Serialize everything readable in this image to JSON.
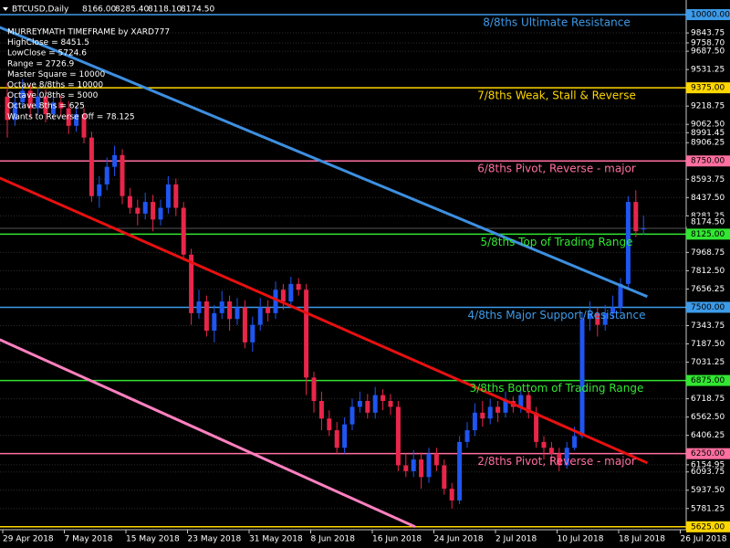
{
  "chart_data": {
    "type": "candlestick",
    "header": {
      "symbol": "BTCUSD,Daily",
      "ohlc_labels": [
        "8166.00",
        "8285.40",
        "8118.10",
        "8174.50"
      ]
    },
    "info_lines": [
      "MURREYMATH TIMEFRAME by XARD777",
      "HighClose = 8451.5",
      "LowClose = 5724.6",
      "Range = 2726.9",
      "Master Square = 10000",
      "Octave 8/8ths = 10000",
      "Octave 0/8ths = 5000",
      "Octave 8ths = 625",
      "Wants to Reverse Off = 78.125"
    ],
    "x_labels": [
      "29 Apr 2018",
      "7 May 2018",
      "15 May 2018",
      "23 May 2018",
      "31 May 2018",
      "8 Jun 2018",
      "16 Jun 2018",
      "24 Jun 2018",
      "2 Jul 2018",
      "10 Jul 2018",
      "18 Jul 2018",
      "26 Jul 2018"
    ],
    "ylim": [
      5600,
      10125
    ],
    "yticks": [
      9843.75,
      {
        "value": 9758.7,
        "label": "9758.70"
      },
      {
        "value": 9687.5,
        "label": "9687.50"
      },
      9531.25,
      9218.75,
      {
        "value": 9062.5,
        "label": "9062.50"
      },
      8991.45,
      8906.25,
      8593.75,
      {
        "value": 8437.5,
        "label": "8437.50"
      },
      8281.25,
      7968.75,
      {
        "value": 7812.5,
        "label": "7812.50"
      },
      7656.25,
      7343.75,
      {
        "value": 7187.5,
        "label": "7187.50"
      },
      7031.25,
      6718.75,
      {
        "value": 6562.5,
        "label": "6562.50"
      },
      6406.25,
      6154.95,
      6093.75,
      {
        "value": 5937.5,
        "label": "5937.50"
      },
      5781.25
    ],
    "grid": true,
    "levels": [
      {
        "value": 10000,
        "price_label": "10000.00",
        "text": "8/8ths Ultimate Resistance",
        "color": "#3d9be9"
      },
      {
        "value": 9375,
        "price_label": "9375.00",
        "text": "7/8ths Weak, Stall & Reverse",
        "color": "#ffd700"
      },
      {
        "value": 8750,
        "price_label": "8750.00",
        "text": "6/8ths Pivot, Reverse - major",
        "color": "#ff6fa0"
      },
      {
        "value": 8125,
        "price_label": "8125.00",
        "text": "5/8ths Top of Trading Range",
        "color": "#32e632"
      },
      {
        "value": 7500,
        "price_label": "7500.00",
        "text": "4/8ths Major Support/Resistance",
        "color": "#3d9be9"
      },
      {
        "value": 6875,
        "price_label": "6875.00",
        "text": "3/8ths Bottom of Trading Range",
        "color": "#32e632"
      },
      {
        "value": 6250,
        "price_label": "6250.00",
        "text": "2/8ths Pivot, Reverse - major",
        "color": "#ff6fa0"
      },
      {
        "value": 5625,
        "price_label": "5625.00",
        "color": "#ffd700"
      }
    ],
    "current_price": {
      "value": 8174.5,
      "label": "8174.50"
    },
    "up_color": "#1f55f0",
    "down_color": "#e8264a",
    "open": [
      9300,
      9100,
      9250,
      9350,
      9200,
      9300,
      9150,
      9250,
      9200,
      9050,
      9150,
      8950,
      8450,
      8550,
      8700,
      8800,
      8450,
      8350,
      8300,
      8400,
      8250,
      8350,
      8550,
      8350,
      7950,
      7450,
      7550,
      7300,
      7450,
      7550,
      7400,
      7500,
      7200,
      7350,
      7500,
      7450,
      7650,
      7550,
      7700,
      7650,
      6900,
      6700,
      6550,
      6450,
      6300,
      6500,
      6650,
      6700,
      6600,
      6750,
      6700,
      6650,
      6150,
      6100,
      6200,
      6050,
      6250,
      6150,
      5950,
      5850,
      6350,
      6450,
      6600,
      6550,
      6650,
      6600,
      6700,
      6650,
      6750,
      6600,
      6350,
      6300,
      6250,
      6150,
      6300,
      6400,
      7400,
      7450,
      7350,
      7450,
      7500,
      7700,
      8400,
      8166
    ],
    "high": [
      9420,
      9330,
      9450,
      9400,
      9380,
      9360,
      9320,
      9310,
      9260,
      9220,
      9200,
      9000,
      8620,
      8780,
      8880,
      8850,
      8520,
      8420,
      8480,
      8460,
      8420,
      8620,
      8600,
      8400,
      8000,
      7650,
      7600,
      7520,
      7640,
      7600,
      7580,
      7560,
      7420,
      7580,
      7560,
      7720,
      7700,
      7760,
      7750,
      7700,
      6950,
      6780,
      6620,
      6520,
      6560,
      6720,
      6780,
      6760,
      6820,
      6800,
      6760,
      6700,
      6250,
      6280,
      6260,
      6300,
      6300,
      6200,
      6000,
      6400,
      6520,
      6680,
      6700,
      6720,
      6700,
      6780,
      6740,
      6800,
      6780,
      6650,
      6400,
      6350,
      6300,
      6350,
      6480,
      7450,
      7550,
      7500,
      7520,
      7600,
      7750,
      8450,
      8500,
      8285.4
    ],
    "low": [
      8950,
      9050,
      9200,
      9120,
      9150,
      9080,
      9100,
      9130,
      8980,
      9000,
      8900,
      8400,
      8350,
      8500,
      8620,
      8380,
      8300,
      8200,
      8250,
      8150,
      8200,
      8300,
      8280,
      7900,
      7350,
      7400,
      7250,
      7200,
      7400,
      7300,
      7350,
      7150,
      7120,
      7300,
      7380,
      7400,
      7480,
      7500,
      7600,
      6750,
      6600,
      6450,
      6400,
      6250,
      6250,
      6450,
      6600,
      6550,
      6550,
      6620,
      6580,
      6100,
      6050,
      6050,
      5950,
      6000,
      6100,
      5900,
      5780,
      5820,
      6300,
      6400,
      6480,
      6500,
      6520,
      6560,
      6600,
      6600,
      6550,
      6300,
      6200,
      6150,
      6100,
      6120,
      6280,
      6380,
      7300,
      7250,
      7300,
      7400,
      7450,
      7650,
      8100,
      8118.1
    ],
    "close": [
      9100,
      9250,
      9350,
      9200,
      9300,
      9150,
      9250,
      9200,
      9050,
      9150,
      8950,
      8450,
      8550,
      8700,
      8800,
      8450,
      8350,
      8300,
      8400,
      8250,
      8350,
      8550,
      8350,
      7950,
      7450,
      7550,
      7300,
      7450,
      7550,
      7400,
      7500,
      7200,
      7350,
      7500,
      7450,
      7650,
      7550,
      7700,
      7650,
      6900,
      6700,
      6550,
      6450,
      6300,
      6500,
      6650,
      6700,
      6600,
      6750,
      6700,
      6650,
      6150,
      6100,
      6200,
      6050,
      6250,
      6150,
      5950,
      5850,
      6350,
      6450,
      6600,
      6550,
      6650,
      6600,
      6700,
      6650,
      6750,
      6600,
      6350,
      6300,
      6250,
      6150,
      6300,
      6400,
      7400,
      7450,
      7350,
      7450,
      7500,
      7700,
      8400,
      8150,
      8174.5
    ],
    "trendlines": [
      {
        "color": "#3d8fe0",
        "x": [
          -1,
          83.5
        ],
        "values": [
          9892,
          7591
        ]
      },
      {
        "color": "#e81010",
        "x": [
          -1,
          83.5
        ],
        "values": [
          8605,
          6171
        ]
      },
      {
        "color": "#ff80c0",
        "x": [
          -1,
          53.2
        ],
        "values": [
          7224,
          5625
        ]
      }
    ]
  }
}
